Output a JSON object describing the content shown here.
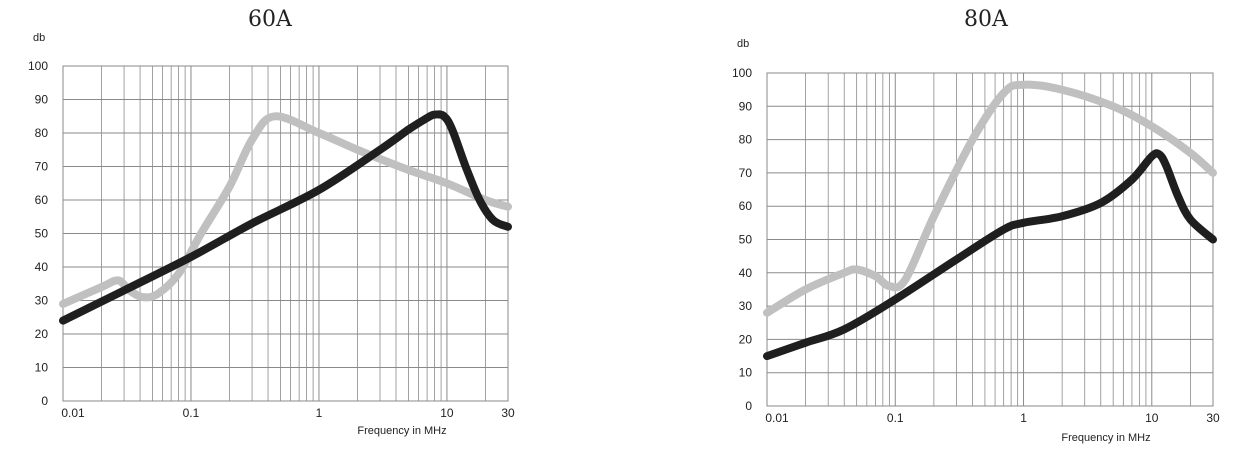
{
  "chart_data": [
    {
      "type": "line",
      "title": "60A",
      "ylabel": "db",
      "xlabel": "Frequency in MHz",
      "xscale": "log",
      "xlim": [
        0.01,
        30
      ],
      "ylim": [
        0,
        100
      ],
      "xticks": [
        0.01,
        0.1,
        1,
        10,
        30
      ],
      "xtick_labels": [
        "0.01",
        "0.1",
        "1",
        "10",
        "30"
      ],
      "yticks": [
        0,
        10,
        20,
        30,
        40,
        50,
        60,
        70,
        80,
        90,
        100
      ],
      "ytick_labels": [
        "0",
        "10",
        "20",
        "30",
        "40",
        "50",
        "60",
        "70",
        "80",
        "90",
        "100"
      ],
      "grid": true,
      "series": [
        {
          "color": "#c0c0c0",
          "points": [
            [
              0.01,
              29
            ],
            [
              0.02,
              34
            ],
            [
              0.027,
              36
            ],
            [
              0.033,
              33
            ],
            [
              0.042,
              31
            ],
            [
              0.055,
              32
            ],
            [
              0.08,
              38
            ],
            [
              0.12,
              50
            ],
            [
              0.2,
              64
            ],
            [
              0.3,
              78
            ],
            [
              0.45,
              85
            ],
            [
              1,
              80
            ],
            [
              2,
              75
            ],
            [
              5,
              69
            ],
            [
              10,
              65
            ],
            [
              20,
              60
            ],
            [
              30,
              58
            ]
          ]
        },
        {
          "color": "#1f1f1f",
          "points": [
            [
              0.01,
              24
            ],
            [
              0.03,
              33
            ],
            [
              0.1,
              43
            ],
            [
              0.3,
              53
            ],
            [
              1,
              63
            ],
            [
              3,
              75
            ],
            [
              5,
              81
            ],
            [
              7,
              84.5
            ],
            [
              8,
              85.5
            ],
            [
              9.5,
              85
            ],
            [
              11,
              81
            ],
            [
              14,
              70
            ],
            [
              18,
              60
            ],
            [
              23,
              54
            ],
            [
              30,
              52
            ]
          ]
        }
      ]
    },
    {
      "type": "line",
      "title": "80A",
      "ylabel": "db",
      "xlabel": "Frequency in MHz",
      "xscale": "log",
      "xlim": [
        0.01,
        30
      ],
      "ylim": [
        0,
        100
      ],
      "xticks": [
        0.01,
        0.1,
        1,
        10,
        30
      ],
      "xtick_labels": [
        "0.01",
        "0.1",
        "1",
        "10",
        "30"
      ],
      "yticks": [
        0,
        10,
        20,
        30,
        40,
        50,
        60,
        70,
        80,
        90,
        100
      ],
      "ytick_labels": [
        "0",
        "10",
        "20",
        "30",
        "40",
        "50",
        "60",
        "70",
        "80",
        "90",
        "100"
      ],
      "grid": true,
      "series": [
        {
          "color": "#c0c0c0",
          "points": [
            [
              0.01,
              28
            ],
            [
              0.02,
              35
            ],
            [
              0.04,
              40
            ],
            [
              0.05,
              41
            ],
            [
              0.07,
              39
            ],
            [
              0.09,
              36
            ],
            [
              0.12,
              38
            ],
            [
              0.2,
              57
            ],
            [
              0.4,
              80
            ],
            [
              0.7,
              94
            ],
            [
              1,
              96.5
            ],
            [
              2,
              95
            ],
            [
              5,
              90
            ],
            [
              10,
              84
            ],
            [
              20,
              76
            ],
            [
              30,
              70
            ]
          ]
        },
        {
          "color": "#1f1f1f",
          "points": [
            [
              0.01,
              15
            ],
            [
              0.02,
              19
            ],
            [
              0.04,
              23
            ],
            [
              0.1,
              32
            ],
            [
              0.3,
              44
            ],
            [
              0.7,
              53
            ],
            [
              1,
              55
            ],
            [
              2,
              57
            ],
            [
              4,
              61
            ],
            [
              7,
              68
            ],
            [
              10,
              75
            ],
            [
              11.5,
              75.5
            ],
            [
              13,
              72
            ],
            [
              16,
              63
            ],
            [
              20,
              56
            ],
            [
              30,
              50
            ]
          ]
        }
      ]
    }
  ]
}
